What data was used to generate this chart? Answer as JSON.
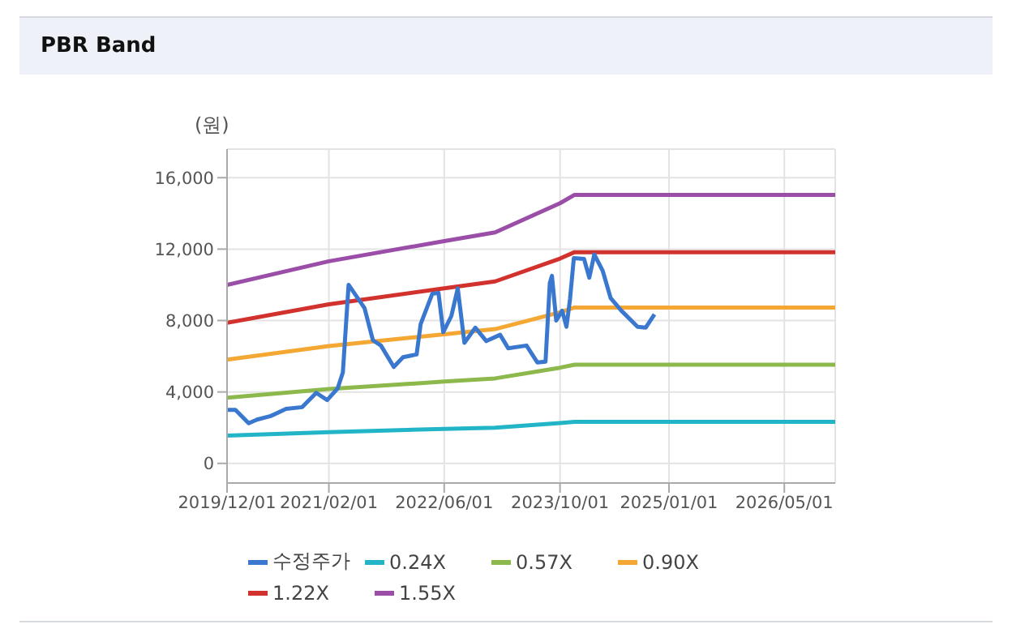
{
  "chart_data": {
    "type": "line",
    "title": "PBR Band",
    "ylabel": "(원)",
    "xlim": [
      "2019-12-01",
      "2026-12-01"
    ],
    "xticks": [
      {
        "value": "2019-12-01",
        "label": "2019/12/01"
      },
      {
        "value": "2021-02-01",
        "label": "2021/02/01"
      },
      {
        "value": "2022-06-01",
        "label": "2022/06/01"
      },
      {
        "value": "2023-10-01",
        "label": "2023/10/01"
      },
      {
        "value": "2025-01-01",
        "label": "2025/01/01"
      },
      {
        "value": "2026-05-01",
        "label": "2026/05/01"
      }
    ],
    "ylim": [
      -1100,
      17600
    ],
    "yticks": [
      {
        "value": 0,
        "label": "0"
      },
      {
        "value": 4000,
        "label": "4,000"
      },
      {
        "value": 8000,
        "label": "8,000"
      },
      {
        "value": 12000,
        "label": "12,000"
      },
      {
        "value": 16000,
        "label": "16,000"
      }
    ],
    "grid": true,
    "legend": "bottom",
    "series": [
      {
        "name": "수정주가",
        "color": "#3a78d0",
        "x": [
          "2019-12-01",
          "2020-01-05",
          "2020-03-01",
          "2020-04-05",
          "2020-06-01",
          "2020-08-05",
          "2020-10-12",
          "2020-12-10",
          "2021-01-25",
          "2021-03-10",
          "2021-04-01",
          "2021-04-25",
          "2021-07-01",
          "2021-08-05",
          "2021-09-08",
          "2021-11-01",
          "2021-12-10",
          "2022-02-05",
          "2022-02-22",
          "2022-04-12",
          "2022-05-08",
          "2022-05-28",
          "2022-07-01",
          "2022-07-28",
          "2022-08-25",
          "2022-10-10",
          "2022-11-25",
          "2023-01-22",
          "2023-02-25",
          "2023-05-13",
          "2023-06-28",
          "2023-08-01",
          "2023-08-19",
          "2023-08-28",
          "2023-09-15",
          "2023-10-10",
          "2023-10-28",
          "2023-11-12",
          "2023-11-28",
          "2024-01-10",
          "2024-02-01",
          "2024-02-22",
          "2024-03-28",
          "2024-05-01",
          "2024-06-15",
          "2024-08-22",
          "2024-09-25",
          "2024-11-01"
        ],
        "values": [
          3000,
          3000,
          2250,
          2450,
          2650,
          3050,
          3150,
          3950,
          3550,
          4200,
          5100,
          10000,
          8700,
          6900,
          6600,
          5400,
          5950,
          6100,
          7800,
          9500,
          9550,
          7350,
          8250,
          9800,
          6750,
          7600,
          6850,
          7200,
          6450,
          6600,
          5650,
          5700,
          10100,
          10500,
          8000,
          8550,
          7650,
          9200,
          11500,
          11450,
          10400,
          11700,
          10800,
          9250,
          8550,
          7650,
          7600,
          8350
        ]
      },
      {
        "name": "0.24X",
        "color": "#22b5c8",
        "x": [
          "2019-12-01",
          "2021-02-01",
          "2022-06-01",
          "2023-01-01",
          "2023-10-01",
          "2023-12-01",
          "2026-12-01"
        ],
        "values": [
          1550,
          1750,
          1930,
          2000,
          2260,
          2330,
          2330
        ]
      },
      {
        "name": "0.57X",
        "color": "#8cb84c",
        "x": [
          "2019-12-01",
          "2021-02-01",
          "2022-06-01",
          "2023-01-01",
          "2023-10-01",
          "2023-12-01",
          "2026-12-01"
        ],
        "values": [
          3680,
          4160,
          4580,
          4760,
          5360,
          5530,
          5530
        ]
      },
      {
        "name": "0.90X",
        "color": "#f5a733",
        "x": [
          "2019-12-01",
          "2021-02-01",
          "2022-06-01",
          "2023-01-01",
          "2023-10-01",
          "2023-12-01",
          "2026-12-01"
        ],
        "values": [
          5810,
          6570,
          7230,
          7520,
          8460,
          8730,
          8730
        ]
      },
      {
        "name": "1.22X",
        "color": "#d2322d",
        "x": [
          "2019-12-01",
          "2021-02-01",
          "2022-06-01",
          "2023-01-01",
          "2023-10-01",
          "2023-12-01",
          "2026-12-01"
        ],
        "values": [
          7870,
          8910,
          9800,
          10190,
          11470,
          11830,
          11830
        ]
      },
      {
        "name": "1.55X",
        "color": "#9b4ea8",
        "x": [
          "2019-12-01",
          "2021-02-01",
          "2022-06-01",
          "2023-01-01",
          "2023-10-01",
          "2023-12-01",
          "2026-12-01"
        ],
        "values": [
          10000,
          11320,
          12450,
          12940,
          14570,
          15040,
          15040
        ]
      }
    ]
  }
}
